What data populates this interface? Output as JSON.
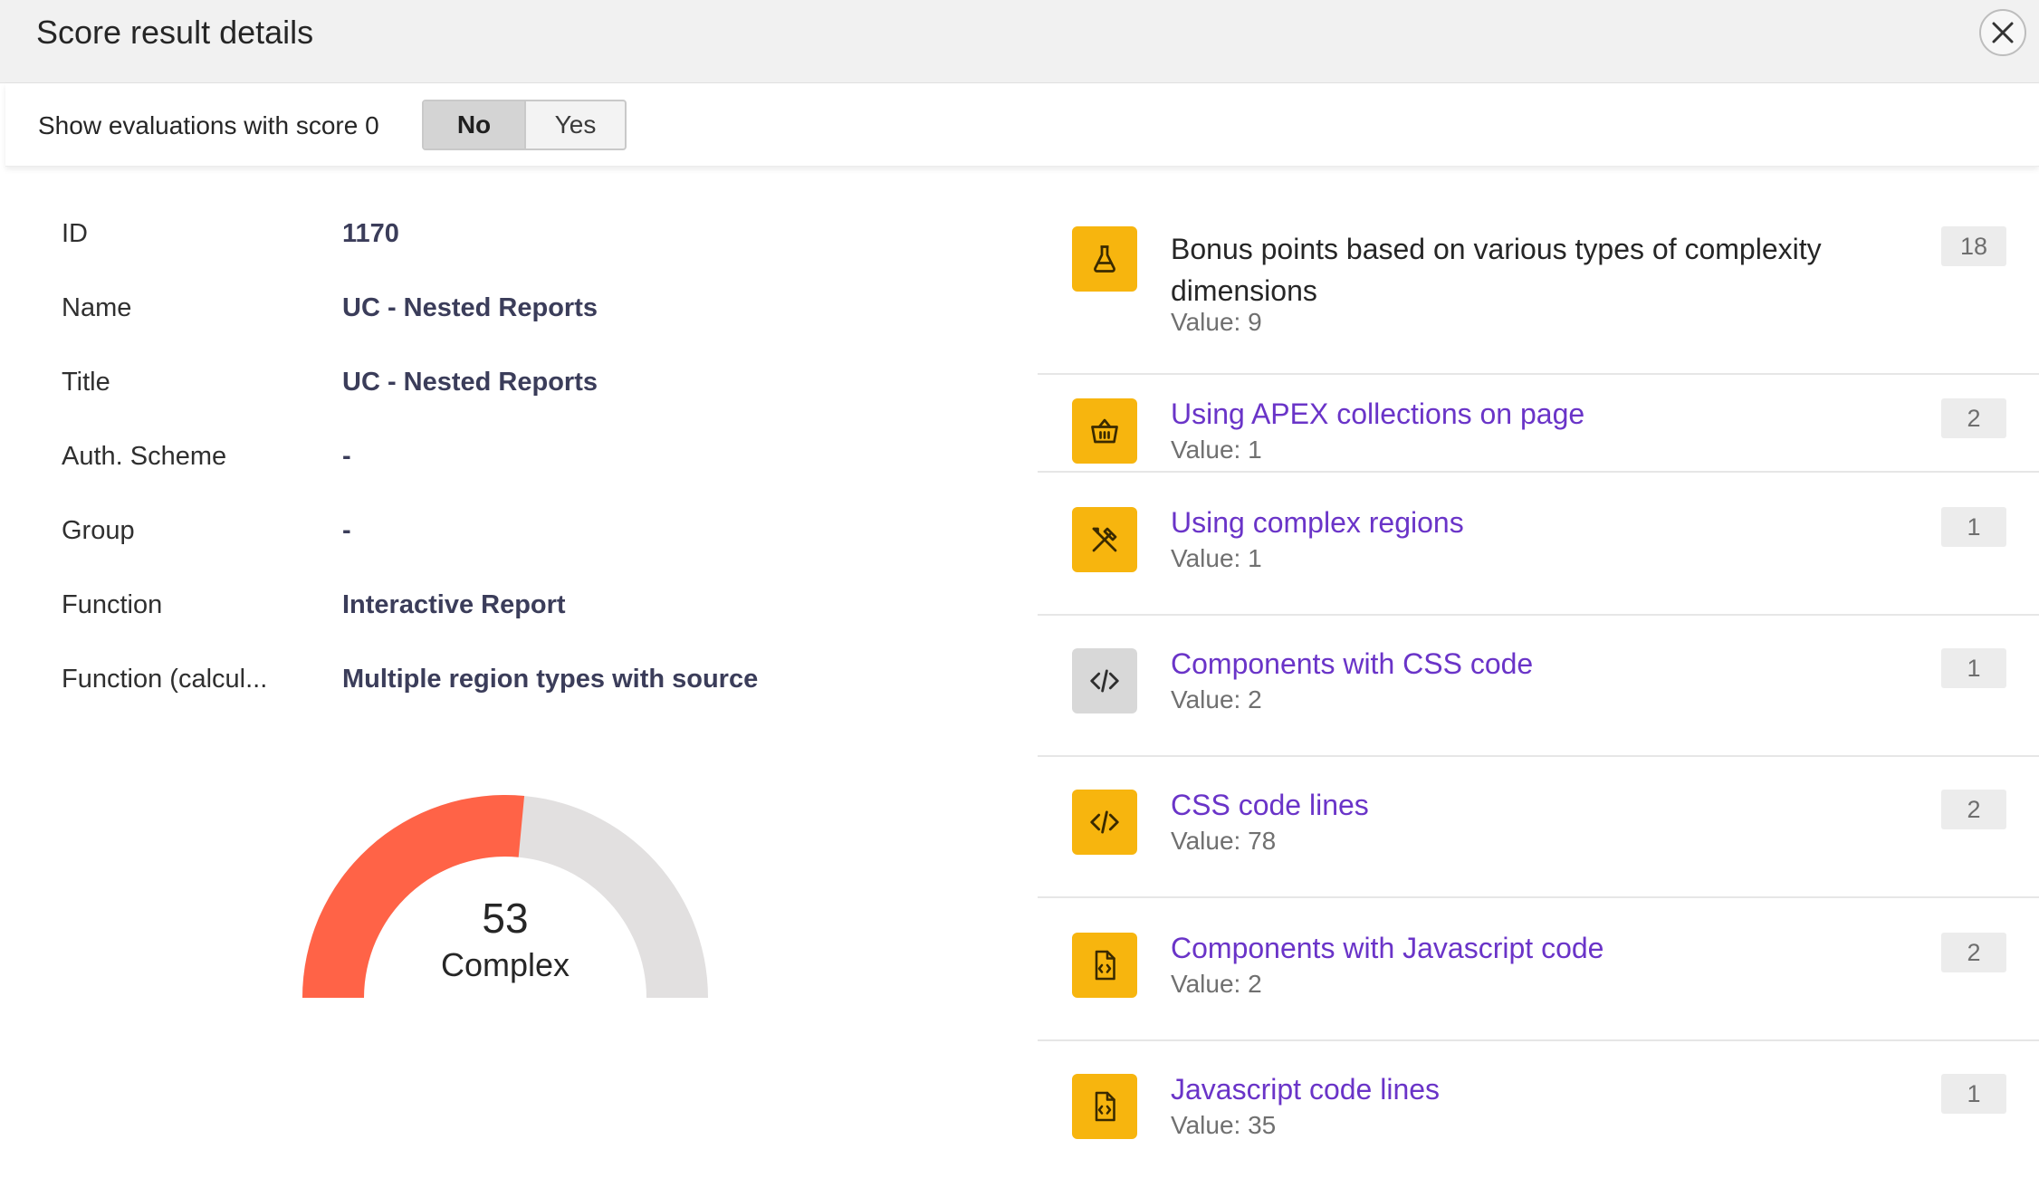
{
  "dialog": {
    "title": "Score result details",
    "close_icon": "close-icon"
  },
  "toolbar": {
    "show_zero_label": "Show evaluations with score 0",
    "toggle": {
      "options": [
        "No",
        "Yes"
      ],
      "selected": "No"
    }
  },
  "properties": [
    {
      "label": "ID",
      "value": "1170"
    },
    {
      "label": "Name",
      "value": "UC - Nested Reports"
    },
    {
      "label": "Title",
      "value": "UC - Nested Reports"
    },
    {
      "label": "Auth. Scheme",
      "value": "-"
    },
    {
      "label": "Group",
      "value": "-"
    },
    {
      "label": "Function",
      "value": "Interactive Report"
    },
    {
      "label": "Function (calcul...",
      "value": "Multiple region types with source"
    }
  ],
  "gauge": {
    "value": "53",
    "label": "Complex",
    "fraction": 0.53,
    "fill_color": "#ff6347",
    "track_color": "#e2e0e0"
  },
  "evaluations": [
    {
      "title": "Bonus points based on various types of complexity dimensions",
      "value": "Value: 9",
      "score": "18",
      "icon": "flask-icon",
      "icon_color": "#f7b50e",
      "link": false
    },
    {
      "title": "Using APEX collections on page",
      "value": "Value: 1",
      "score": "2",
      "icon": "basket-icon",
      "icon_color": "#f7b50e",
      "link": true
    },
    {
      "title": "Using complex regions",
      "value": "Value: 1",
      "score": "1",
      "icon": "tools-icon",
      "icon_color": "#f7b50e",
      "link": true
    },
    {
      "title": "Components with CSS code",
      "value": "Value: 2",
      "score": "1",
      "icon": "code-icon",
      "icon_color": "#d8d8d8",
      "link": true
    },
    {
      "title": "CSS code lines",
      "value": "Value: 78",
      "score": "2",
      "icon": "code-icon",
      "icon_color": "#f7b50e",
      "link": true
    },
    {
      "title": "Components with Javascript code",
      "value": "Value: 2",
      "score": "2",
      "icon": "file-code-icon",
      "icon_color": "#f7b50e",
      "link": true
    },
    {
      "title": "Javascript code lines",
      "value": "Value: 35",
      "score": "1",
      "icon": "file-code-icon",
      "icon_color": "#f7b50e",
      "link": true
    }
  ]
}
